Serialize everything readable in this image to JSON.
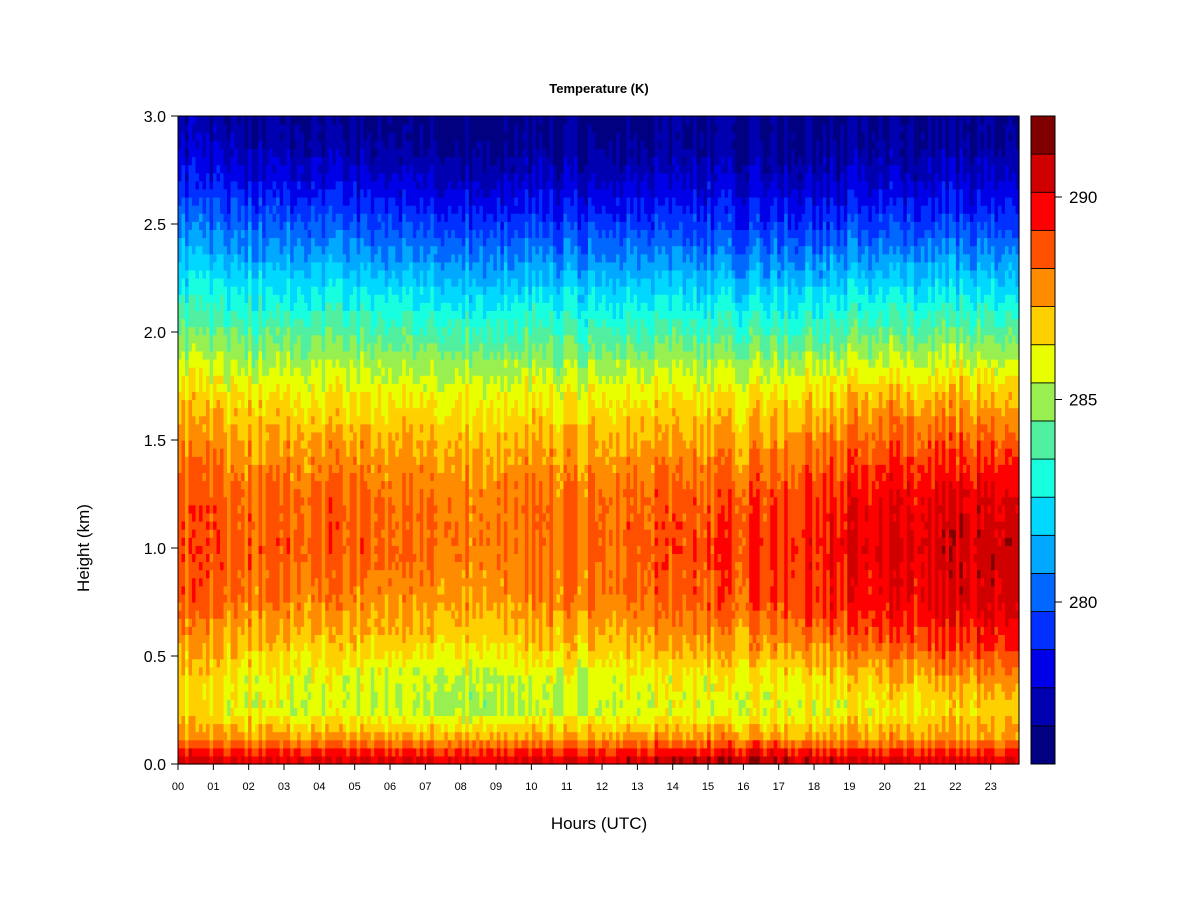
{
  "chart_data": {
    "type": "heatmap",
    "title": "Temperature (K)",
    "xlabel": "Hours (UTC)",
    "ylabel": "Height (km)",
    "x_ticks": [
      "00",
      "01",
      "02",
      "03",
      "04",
      "05",
      "06",
      "07",
      "08",
      "09",
      "10",
      "11",
      "12",
      "13",
      "14",
      "15",
      "16",
      "17",
      "18",
      "19",
      "20",
      "21",
      "22",
      "23"
    ],
    "y_ticks": [
      "0.0",
      "0.5",
      "1.0",
      "1.5",
      "2.0",
      "2.5",
      "3.0"
    ],
    "xlim": [
      0,
      23.8
    ],
    "ylim": [
      0,
      3.0
    ],
    "colorbar": {
      "range": [
        276,
        292
      ],
      "ticks": [
        "280",
        "285",
        "290"
      ],
      "colors": [
        "#000080",
        "#0000b0",
        "#0000e8",
        "#0030ff",
        "#0068ff",
        "#00a8ff",
        "#00d8ff",
        "#18ffe0",
        "#50f0a0",
        "#98f050",
        "#e8ff00",
        "#ffd000",
        "#ff8c00",
        "#ff5000",
        "#ff0000",
        "#d00000",
        "#800000"
      ]
    },
    "profile_description": "Surface layer ~290 K, cooler band near 0.3 km ~285 K, warm layer 0.6-1.5 km ~288-291 K (warmest after 19 UTC), decreasing to ~276 K at 3 km.",
    "profile_anchors": {
      "heights_km": [
        0.0,
        0.05,
        0.12,
        0.25,
        0.4,
        0.55,
        0.75,
        1.0,
        1.25,
        1.5,
        1.7,
        1.9,
        2.1,
        2.3,
        2.5,
        2.7,
        2.85,
        3.0
      ],
      "times_h": [
        0,
        4,
        8,
        12,
        16,
        20,
        23.8
      ],
      "temps_K": [
        [
          290.5,
          290.5,
          290.5,
          290.5,
          291.5,
          290.5,
          290.5
        ],
        [
          289.5,
          289.5,
          289.5,
          289.5,
          290.0,
          289.5,
          289.5
        ],
        [
          287.5,
          287.5,
          287.5,
          287.5,
          287.8,
          287.5,
          287.8
        ],
        [
          286.2,
          285.6,
          285.3,
          285.6,
          285.8,
          286.2,
          286.8
        ],
        [
          286.5,
          285.8,
          285.4,
          285.8,
          286.2,
          287.0,
          288.0
        ],
        [
          287.2,
          286.8,
          286.6,
          287.0,
          287.5,
          288.5,
          289.5
        ],
        [
          288.3,
          287.9,
          287.6,
          288.0,
          288.7,
          289.8,
          290.5
        ],
        [
          288.6,
          288.6,
          288.2,
          288.4,
          289.0,
          290.2,
          290.8
        ],
        [
          288.4,
          288.4,
          288.1,
          288.2,
          288.7,
          289.8,
          290.3
        ],
        [
          287.5,
          287.4,
          287.2,
          287.3,
          287.6,
          288.5,
          288.6
        ],
        [
          286.5,
          286.3,
          286.2,
          286.2,
          286.4,
          287.2,
          287.2
        ],
        [
          285.0,
          284.8,
          284.6,
          284.6,
          284.7,
          285.2,
          285.2
        ],
        [
          283.4,
          283.2,
          283.0,
          282.9,
          282.9,
          283.3,
          283.3
        ],
        [
          281.7,
          281.5,
          281.2,
          281.1,
          281.0,
          281.4,
          281.4
        ],
        [
          280.2,
          279.9,
          279.4,
          279.4,
          279.3,
          279.5,
          279.5
        ],
        [
          278.6,
          278.2,
          277.8,
          277.8,
          277.8,
          277.9,
          278.0
        ],
        [
          277.6,
          277.2,
          276.9,
          276.9,
          277.0,
          277.1,
          277.2
        ],
        [
          277.2,
          276.7,
          276.5,
          276.6,
          276.7,
          276.8,
          276.9
        ]
      ]
    }
  }
}
